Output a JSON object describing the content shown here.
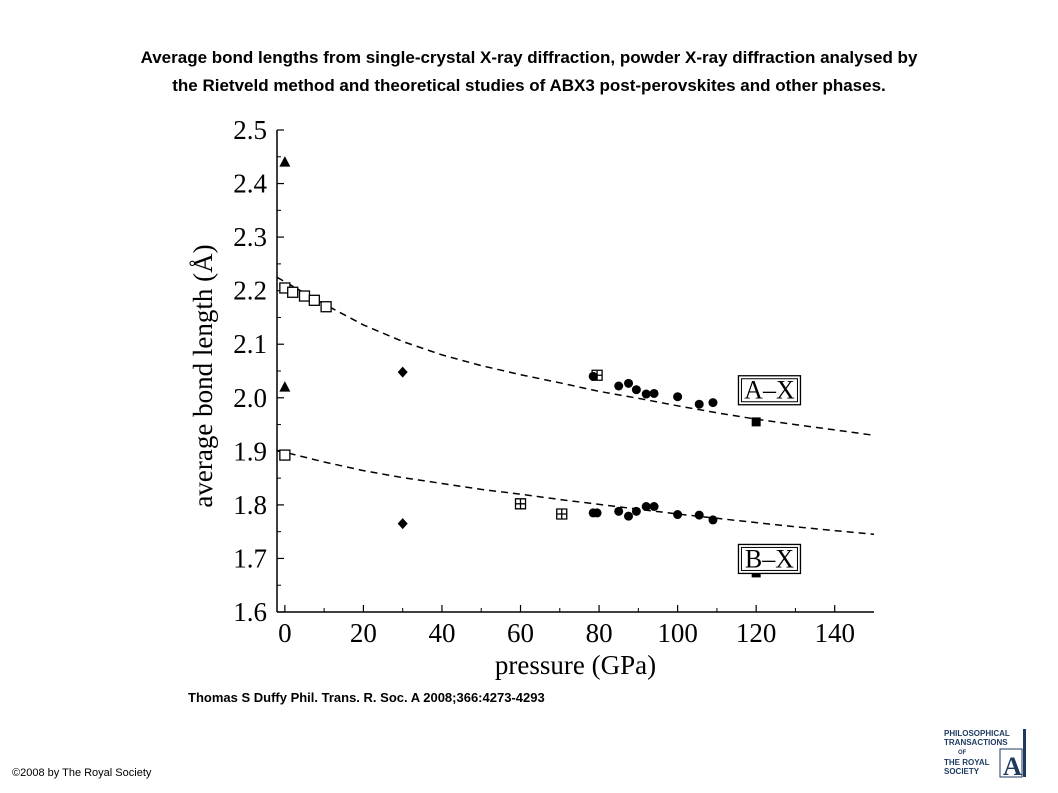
{
  "title": {
    "line1": "Average bond lengths from single-crystal X-ray diffraction, powder X-ray diffraction analysed by",
    "line2": "the Rietveld method and theoretical studies of ABX3 post-perovskites and other phases."
  },
  "citation": "Thomas S Duffy Phil. Trans. R. Soc. A 2008;366:4273-4293",
  "copyright": "©2008 by The Royal Society",
  "logo": {
    "line1": "PHILOSOPHICAL",
    "line2": "TRANSACTIONS",
    "line3": "OF",
    "line4": "THE ROYAL",
    "line5": "SOCIETY",
    "letter": "A"
  },
  "chart_data": {
    "type": "scatter",
    "xlabel": "pressure (GPa)",
    "ylabel": "average bond length (Å)",
    "xlim": [
      -2,
      150
    ],
    "ylim": [
      1.6,
      2.5
    ],
    "xticks": [
      0,
      20,
      40,
      60,
      80,
      100,
      120,
      140
    ],
    "xticklabels": [
      "0",
      "20",
      "40",
      "60",
      "80",
      "100",
      "120",
      "140"
    ],
    "yticks": [
      1.6,
      1.7,
      1.8,
      1.9,
      2.0,
      2.1,
      2.2,
      2.3,
      2.4,
      2.5
    ],
    "yticklabels": [
      "1.6",
      "1.7",
      "1.8",
      "1.9",
      "2.0",
      "2.1",
      "2.2",
      "2.3",
      "2.4",
      "2.5"
    ],
    "grid": false,
    "annotations": [
      {
        "text": "A–X",
        "x": 116,
        "y": 2.015
      },
      {
        "text": "B–X",
        "x": 116,
        "y": 1.7
      }
    ],
    "curves": [
      {
        "label": "A–X",
        "style": "dashed",
        "x": [
          -2,
          10,
          20,
          30,
          40,
          50,
          60,
          70,
          80,
          90,
          100,
          110,
          120,
          130,
          140,
          150
        ],
        "y": [
          2.225,
          2.175,
          2.136,
          2.105,
          2.08,
          2.06,
          2.043,
          2.028,
          2.012,
          1.999,
          1.985,
          1.972,
          1.96,
          1.95,
          1.94,
          1.93
        ]
      },
      {
        "label": "B–X",
        "style": "dashed",
        "x": [
          -2,
          10,
          20,
          30,
          40,
          50,
          60,
          70,
          80,
          90,
          100,
          110,
          120,
          130,
          140,
          150
        ],
        "y": [
          1.902,
          1.88,
          1.864,
          1.851,
          1.84,
          1.829,
          1.82,
          1.81,
          1.801,
          1.792,
          1.783,
          1.775,
          1.767,
          1.759,
          1.752,
          1.745
        ]
      }
    ],
    "series": [
      {
        "marker": "filled-triangle",
        "points": [
          [
            0,
            2.44
          ],
          [
            0,
            2.02
          ]
        ]
      },
      {
        "marker": "open-square",
        "points": [
          [
            0,
            2.205
          ],
          [
            2,
            2.197
          ],
          [
            5,
            2.19
          ],
          [
            7.5,
            2.182
          ],
          [
            10.5,
            2.17
          ],
          [
            0,
            1.893
          ]
        ]
      },
      {
        "marker": "filled-diamond",
        "points": [
          [
            30,
            2.048
          ],
          [
            30,
            1.765
          ]
        ]
      },
      {
        "marker": "crossed-square",
        "points": [
          [
            79.5,
            2.042
          ],
          [
            60,
            1.802
          ],
          [
            70.5,
            1.783
          ]
        ]
      },
      {
        "marker": "filled-circle",
        "points": [
          [
            78.5,
            2.04
          ],
          [
            85,
            2.022
          ],
          [
            87.5,
            2.027
          ],
          [
            89.5,
            2.015
          ],
          [
            92,
            2.007
          ],
          [
            94,
            2.008
          ],
          [
            100,
            2.002
          ],
          [
            105.5,
            1.988
          ],
          [
            109,
            1.991
          ],
          [
            78.5,
            1.785
          ],
          [
            79.5,
            1.785
          ],
          [
            85,
            1.788
          ],
          [
            87.5,
            1.779
          ],
          [
            89.5,
            1.788
          ],
          [
            92,
            1.797
          ],
          [
            94,
            1.797
          ],
          [
            100,
            1.782
          ],
          [
            105.5,
            1.781
          ],
          [
            109,
            1.772
          ]
        ]
      },
      {
        "marker": "filled-square",
        "points": [
          [
            120,
            1.955
          ],
          [
            120,
            1.673
          ]
        ]
      }
    ]
  }
}
